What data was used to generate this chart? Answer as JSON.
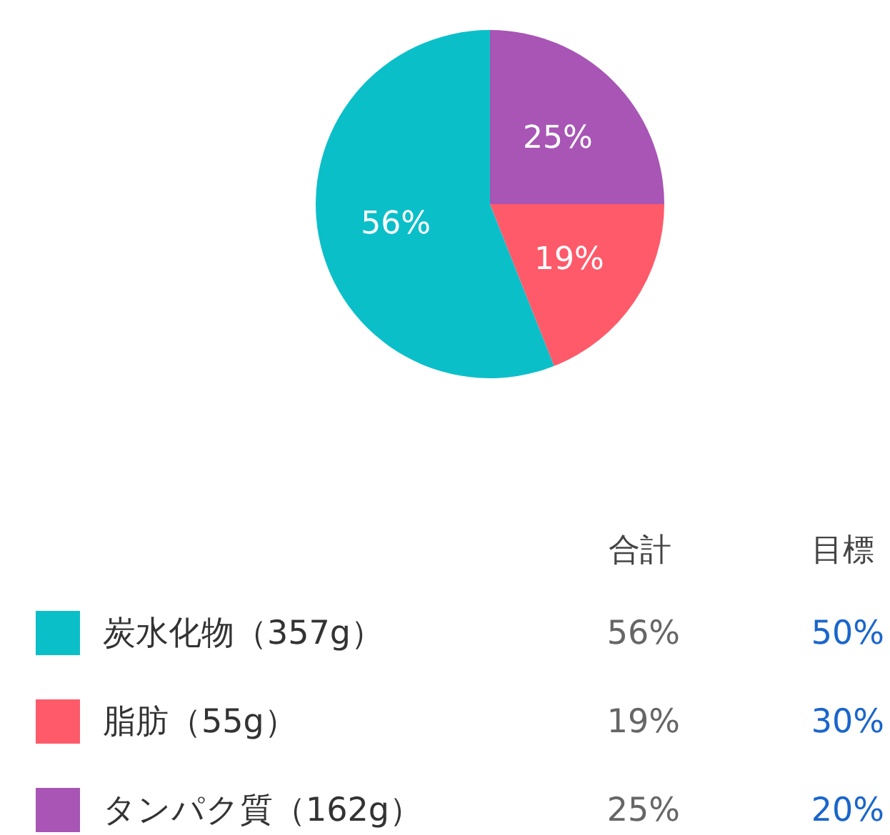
{
  "chart_data": {
    "type": "pie",
    "categories": [
      "炭水化物（357g）",
      "脂肪（55g）",
      "タンパク質（162g）"
    ],
    "values": [
      56,
      19,
      25
    ],
    "colors": [
      "#0bbfc9",
      "#fe5a6a",
      "#a855b5"
    ],
    "value_labels": [
      "56%",
      "19%",
      "25%"
    ],
    "legend": "bottom",
    "annotations": [
      "合計",
      "目標",
      "50%",
      "30%",
      "20%"
    ]
  }
}
